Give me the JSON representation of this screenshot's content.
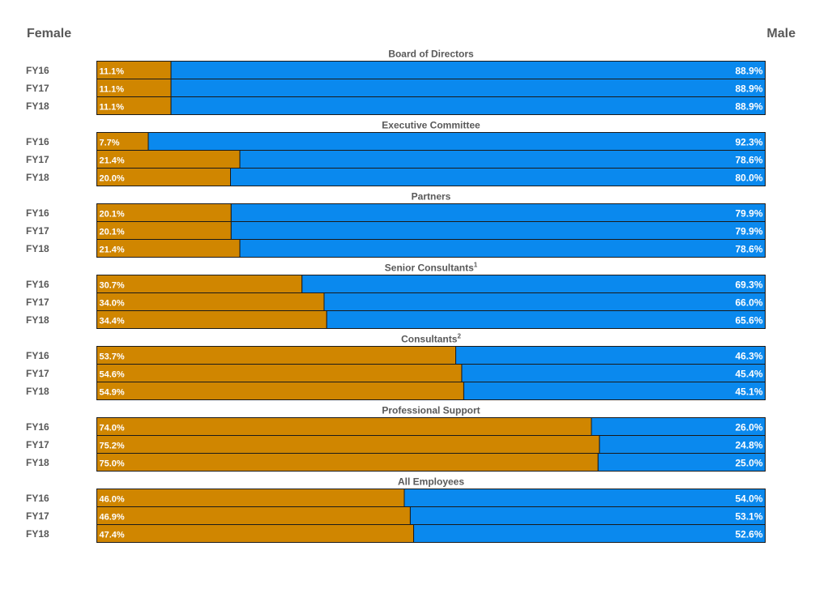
{
  "header": {
    "left": "Female",
    "right": "Male"
  },
  "colors": {
    "female": "#D08600",
    "male": "#0A89EE",
    "border": "#1a1a1a",
    "text": "#595959"
  },
  "chart_data": {
    "type": "bar",
    "orientation": "horizontal",
    "stacked": true,
    "normalized_to": 100,
    "series": [
      {
        "name": "Female",
        "color": "#D08600"
      },
      {
        "name": "Male",
        "color": "#0A89EE"
      }
    ],
    "groups": [
      {
        "title": "Board of Directors",
        "footnote": "",
        "rows": [
          {
            "year": "FY16",
            "female": 11.1,
            "male": 88.9,
            "female_label": "11.1%",
            "male_label": "88.9%"
          },
          {
            "year": "FY17",
            "female": 11.1,
            "male": 88.9,
            "female_label": "11.1%",
            "male_label": "88.9%"
          },
          {
            "year": "FY18",
            "female": 11.1,
            "male": 88.9,
            "female_label": "11.1%",
            "male_label": "88.9%"
          }
        ]
      },
      {
        "title": "Executive Committee",
        "footnote": "",
        "rows": [
          {
            "year": "FY16",
            "female": 7.7,
            "male": 92.3,
            "female_label": "7.7%",
            "male_label": "92.3%"
          },
          {
            "year": "FY17",
            "female": 21.4,
            "male": 78.6,
            "female_label": "21.4%",
            "male_label": "78.6%"
          },
          {
            "year": "FY18",
            "female": 20.0,
            "male": 80.0,
            "female_label": "20.0%",
            "male_label": "80.0%"
          }
        ]
      },
      {
        "title": "Partners",
        "footnote": "",
        "rows": [
          {
            "year": "FY16",
            "female": 20.1,
            "male": 79.9,
            "female_label": "20.1%",
            "male_label": "79.9%"
          },
          {
            "year": "FY17",
            "female": 20.1,
            "male": 79.9,
            "female_label": "20.1%",
            "male_label": "79.9%"
          },
          {
            "year": "FY18",
            "female": 21.4,
            "male": 78.6,
            "female_label": "21.4%",
            "male_label": "78.6%"
          }
        ]
      },
      {
        "title": "Senior Consultants",
        "footnote": "1",
        "rows": [
          {
            "year": "FY16",
            "female": 30.7,
            "male": 69.3,
            "female_label": "30.7%",
            "male_label": "69.3%"
          },
          {
            "year": "FY17",
            "female": 34.0,
            "male": 66.0,
            "female_label": "34.0%",
            "male_label": "66.0%"
          },
          {
            "year": "FY18",
            "female": 34.4,
            "male": 65.6,
            "female_label": "34.4%",
            "male_label": "65.6%"
          }
        ]
      },
      {
        "title": "Consultants",
        "footnote": "2",
        "rows": [
          {
            "year": "FY16",
            "female": 53.7,
            "male": 46.3,
            "female_label": "53.7%",
            "male_label": "46.3%"
          },
          {
            "year": "FY17",
            "female": 54.6,
            "male": 45.4,
            "female_label": "54.6%",
            "male_label": "45.4%"
          },
          {
            "year": "FY18",
            "female": 54.9,
            "male": 45.1,
            "female_label": "54.9%",
            "male_label": "45.1%"
          }
        ]
      },
      {
        "title": "Professional Support",
        "footnote": "",
        "rows": [
          {
            "year": "FY16",
            "female": 74.0,
            "male": 26.0,
            "female_label": "74.0%",
            "male_label": "26.0%"
          },
          {
            "year": "FY17",
            "female": 75.2,
            "male": 24.8,
            "female_label": "75.2%",
            "male_label": "24.8%"
          },
          {
            "year": "FY18",
            "female": 75.0,
            "male": 25.0,
            "female_label": "75.0%",
            "male_label": "25.0%"
          }
        ]
      },
      {
        "title": "All Employees",
        "footnote": "",
        "rows": [
          {
            "year": "FY16",
            "female": 46.0,
            "male": 54.0,
            "female_label": "46.0%",
            "male_label": "54.0%"
          },
          {
            "year": "FY17",
            "female": 46.9,
            "male": 53.1,
            "female_label": "46.9%",
            "male_label": "53.1%"
          },
          {
            "year": "FY18",
            "female": 47.4,
            "male": 52.6,
            "female_label": "47.4%",
            "male_label": "52.6%"
          }
        ]
      }
    ]
  }
}
